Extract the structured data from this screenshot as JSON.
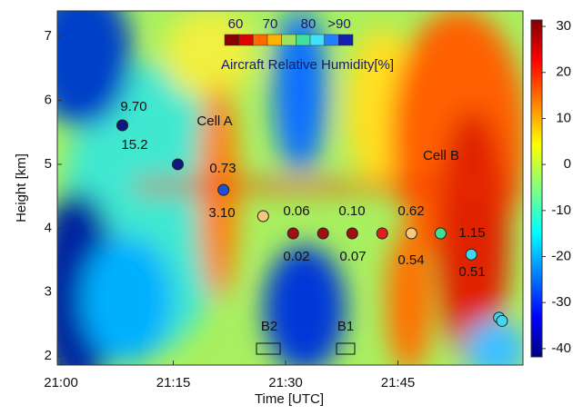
{
  "chart_data": {
    "type": "scatter",
    "x_label": "Time [UTC]",
    "y_label": "Height [km]",
    "xlim": [
      -0.49,
      61.7
    ],
    "xticks": [
      {
        "value": 0,
        "label": "21:00"
      },
      {
        "value": 15,
        "label": "21:15"
      },
      {
        "value": 30,
        "label": "21:30"
      },
      {
        "value": 45,
        "label": "21:45"
      }
    ],
    "ylim": [
      1.86,
      7.4
    ],
    "yticks": [
      2,
      3,
      4,
      5,
      6,
      7
    ],
    "x": [
      8.2,
      15.6,
      21.7,
      27.0,
      31.0,
      35.0,
      38.9,
      42.9,
      46.8,
      50.7,
      54.8,
      58.5,
      58.9
    ],
    "y": [
      5.61,
      5.0,
      4.6,
      4.19,
      3.92,
      3.92,
      3.92,
      3.92,
      3.92,
      3.92,
      3.59,
      2.6,
      2.55
    ],
    "point_colors": [
      "#101880",
      "#101880",
      "#2050d0",
      "#f5c87a",
      "#a01010",
      "#a01010",
      "#a01010",
      "#e02020",
      "#f5c87a",
      "#40e090",
      "#40d8f0",
      "#40d8f0",
      "#40d8f0"
    ],
    "annotations": [
      "9.70",
      "15.2",
      "Cell A",
      "0.73",
      "3.10",
      "0.06",
      "0.02",
      "0.10",
      "0.07",
      "0.62",
      "0.54",
      "1.15",
      "0.51",
      "Cell B",
      "B2",
      "B1"
    ],
    "colorbar": {
      "ylim": [
        -41.8,
        31.4
      ],
      "ticks": [
        -40,
        -30,
        -20,
        -10,
        0,
        10,
        20,
        30
      ]
    },
    "humidity_legend": {
      "title": "Aircraft Relative Humidity[%]",
      "labels": [
        "60",
        "70",
        "80",
        ">90"
      ],
      "colors": [
        "#8b0000",
        "#e00000",
        "#ff6a00",
        "#ffb000",
        "#a0e060",
        "#40e0a0",
        "#40e0ff",
        "#2080ff",
        "#1020b0"
      ]
    }
  }
}
